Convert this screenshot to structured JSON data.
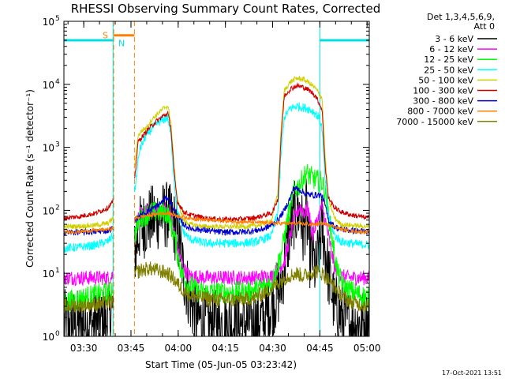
{
  "chart_data": {
    "type": "line",
    "title": "RHESSI Observing Summary Count Rates, Corrected",
    "xlabel": "Start Time (05-Jun-05 03:23:42)",
    "ylabel": "Corrected Count Rate (s⁻¹ detector⁻¹)",
    "yscale": "log",
    "ylim": [
      1,
      100000
    ],
    "xlim_minutes": [
      0,
      97
    ],
    "x_unit": "minutes after 03:23:42",
    "x_ticks": [
      {
        "label": "03:30",
        "t": 6.3
      },
      {
        "label": "03:45",
        "t": 21.3
      },
      {
        "label": "04:00",
        "t": 36.3
      },
      {
        "label": "04:15",
        "t": 51.3
      },
      {
        "label": "04:30",
        "t": 66.3
      },
      {
        "label": "04:45",
        "t": 81.3
      },
      {
        "label": "05:00",
        "t": 96.3
      }
    ],
    "y_ticks": [
      {
        "label": "10",
        "exp": "0",
        "v": 1
      },
      {
        "label": "10",
        "exp": "1",
        "v": 10
      },
      {
        "label": "10",
        "exp": "2",
        "v": 100
      },
      {
        "label": "10",
        "exp": "3",
        "v": 1000
      },
      {
        "label": "10",
        "exp": "4",
        "v": 10000
      },
      {
        "label": "10",
        "exp": "5",
        "v": 100000
      }
    ],
    "legend_header": [
      "Det 1,3,4,5,6,9,",
      "Att 0"
    ],
    "legend_position": "right",
    "footer": "17-Oct-2021 13:51",
    "flags": {
      "s_label": "S",
      "n_label": "N",
      "s_color": "#ff8000",
      "n_color": "#00e0e0",
      "night_level": 50000,
      "night_intervals": [
        [
          0,
          15.6
        ],
        [
          81.3,
          97
        ]
      ],
      "saa_interval": [
        15.8,
        22.4
      ],
      "saa_level": 60000
    },
    "series": [
      {
        "name": "3 - 6 keV",
        "color": "#000000",
        "points": [
          [
            0,
            1.6
          ],
          [
            5,
            1.6
          ],
          [
            10,
            1.6
          ],
          [
            14,
            1.8
          ],
          [
            15.6,
            3
          ],
          [
            22.5,
            20
          ],
          [
            24,
            50
          ],
          [
            27,
            70
          ],
          [
            30,
            80
          ],
          [
            33,
            85
          ],
          [
            35,
            60
          ],
          [
            37,
            25
          ],
          [
            38,
            10
          ],
          [
            40,
            4
          ],
          [
            42,
            2
          ],
          [
            46,
            1.6
          ],
          [
            55,
            1.6
          ],
          [
            60,
            1.6
          ],
          [
            64,
            2
          ],
          [
            69,
            6
          ],
          [
            71,
            30
          ],
          [
            73,
            80
          ],
          [
            75,
            100
          ],
          [
            76,
            40
          ],
          [
            77,
            100
          ],
          [
            78,
            20
          ],
          [
            79,
            20
          ],
          [
            80,
            10
          ],
          [
            82,
            60
          ],
          [
            84,
            10
          ],
          [
            86,
            3
          ],
          [
            88,
            2
          ],
          [
            91,
            1.6
          ],
          [
            97,
            1.6
          ]
        ]
      },
      {
        "name": "6 - 12 keV",
        "color": "#ff00ff",
        "points": [
          [
            0,
            8.5
          ],
          [
            10,
            8.5
          ],
          [
            15,
            8.5
          ],
          [
            15.6,
            10
          ],
          [
            22.5,
            50
          ],
          [
            24,
            85
          ],
          [
            26,
            95
          ],
          [
            29,
            100
          ],
          [
            32,
            110
          ],
          [
            34,
            85
          ],
          [
            36,
            25
          ],
          [
            38,
            12
          ],
          [
            40,
            9
          ],
          [
            45,
            8.5
          ],
          [
            60,
            8.5
          ],
          [
            66,
            9
          ],
          [
            70,
            15
          ],
          [
            73,
            70
          ],
          [
            75,
            115
          ],
          [
            76.5,
            90
          ],
          [
            77.5,
            110
          ],
          [
            79,
            40
          ],
          [
            82,
            120
          ],
          [
            84,
            40
          ],
          [
            86,
            12
          ],
          [
            88,
            9
          ],
          [
            91,
            8.5
          ],
          [
            97,
            8.5
          ]
        ]
      },
      {
        "name": "12 - 25 keV",
        "color": "#00ff00",
        "points": [
          [
            0,
            3.5
          ],
          [
            10,
            4.5
          ],
          [
            15,
            5
          ],
          [
            15.6,
            7
          ],
          [
            22.5,
            40
          ],
          [
            24,
            75
          ],
          [
            27,
            90
          ],
          [
            30,
            95
          ],
          [
            33,
            90
          ],
          [
            35,
            40
          ],
          [
            37,
            12
          ],
          [
            39,
            7
          ],
          [
            43,
            5
          ],
          [
            50,
            5
          ],
          [
            58,
            5
          ],
          [
            63,
            6
          ],
          [
            66,
            7
          ],
          [
            69,
            20
          ],
          [
            71,
            70
          ],
          [
            73,
            200
          ],
          [
            75,
            260
          ],
          [
            77,
            400
          ],
          [
            78,
            350
          ],
          [
            80,
            300
          ],
          [
            82,
            280
          ],
          [
            83,
            200
          ],
          [
            85,
            40
          ],
          [
            87,
            10
          ],
          [
            89,
            6
          ],
          [
            92,
            5
          ],
          [
            97,
            4
          ]
        ]
      },
      {
        "name": "25 - 50 keV",
        "color": "#00ffff",
        "points": [
          [
            0,
            25
          ],
          [
            5,
            26
          ],
          [
            10,
            28
          ],
          [
            14,
            32
          ],
          [
            15.6,
            40
          ],
          [
            22.5,
            200
          ],
          [
            24,
            900
          ],
          [
            26,
            1500
          ],
          [
            28,
            2000
          ],
          [
            30,
            2500
          ],
          [
            32,
            2800
          ],
          [
            33,
            3000
          ],
          [
            34,
            1500
          ],
          [
            35,
            300
          ],
          [
            36,
            100
          ],
          [
            38,
            45
          ],
          [
            40,
            35
          ],
          [
            45,
            30
          ],
          [
            50,
            30
          ],
          [
            55,
            30
          ],
          [
            60,
            31
          ],
          [
            63,
            34
          ],
          [
            66,
            40
          ],
          [
            68,
            100
          ],
          [
            69,
            800
          ],
          [
            70,
            3000
          ],
          [
            72,
            4200
          ],
          [
            74,
            4500
          ],
          [
            77,
            4200
          ],
          [
            79,
            3800
          ],
          [
            81,
            3000
          ],
          [
            82,
            2000
          ],
          [
            83,
            300
          ],
          [
            84,
            80
          ],
          [
            86,
            40
          ],
          [
            88,
            32
          ],
          [
            91,
            30
          ],
          [
            97,
            28
          ]
        ]
      },
      {
        "name": "50 - 100 keV",
        "color": "#d0d000",
        "points": [
          [
            0,
            55
          ],
          [
            5,
            56
          ],
          [
            10,
            58
          ],
          [
            14,
            62
          ],
          [
            15.6,
            75
          ],
          [
            22.5,
            500
          ],
          [
            23.5,
            1500
          ],
          [
            25,
            1900
          ],
          [
            26,
            2000
          ],
          [
            28,
            2800
          ],
          [
            30,
            3500
          ],
          [
            32,
            4300
          ],
          [
            33,
            4500
          ],
          [
            34,
            2500
          ],
          [
            35,
            500
          ],
          [
            36,
            150
          ],
          [
            38,
            70
          ],
          [
            40,
            60
          ],
          [
            45,
            55
          ],
          [
            50,
            55
          ],
          [
            55,
            55
          ],
          [
            60,
            56
          ],
          [
            63,
            60
          ],
          [
            66,
            70
          ],
          [
            68,
            200
          ],
          [
            69,
            2000
          ],
          [
            70,
            8000
          ],
          [
            72,
            11000
          ],
          [
            74,
            12500
          ],
          [
            76,
            12000
          ],
          [
            78,
            10500
          ],
          [
            80,
            8500
          ],
          [
            82,
            6000
          ],
          [
            83,
            700
          ],
          [
            84,
            150
          ],
          [
            86,
            75
          ],
          [
            88,
            60
          ],
          [
            91,
            58
          ],
          [
            97,
            55
          ]
        ]
      },
      {
        "name": "100 - 300 keV",
        "color": "#cc0000",
        "points": [
          [
            0,
            75
          ],
          [
            5,
            80
          ],
          [
            10,
            90
          ],
          [
            14,
            110
          ],
          [
            15.6,
            140
          ],
          [
            22.5,
            300
          ],
          [
            23.5,
            1200
          ],
          [
            25,
            1500
          ],
          [
            27,
            2000
          ],
          [
            29,
            2500
          ],
          [
            31,
            3000
          ],
          [
            33,
            3500
          ],
          [
            34,
            2000
          ],
          [
            35,
            400
          ],
          [
            36,
            140
          ],
          [
            38,
            95
          ],
          [
            40,
            85
          ],
          [
            45,
            75
          ],
          [
            50,
            72
          ],
          [
            55,
            72
          ],
          [
            60,
            75
          ],
          [
            63,
            82
          ],
          [
            66,
            90
          ],
          [
            68,
            150
          ],
          [
            69,
            1500
          ],
          [
            70,
            6500
          ],
          [
            72,
            8500
          ],
          [
            74,
            9500
          ],
          [
            76,
            9000
          ],
          [
            78,
            8000
          ],
          [
            80,
            6500
          ],
          [
            82,
            4000
          ],
          [
            83,
            500
          ],
          [
            84,
            160
          ],
          [
            86,
            110
          ],
          [
            88,
            95
          ],
          [
            91,
            85
          ],
          [
            97,
            75
          ]
        ]
      },
      {
        "name": "300 - 800 keV",
        "color": "#0000cc",
        "points": [
          [
            0,
            45
          ],
          [
            5,
            45
          ],
          [
            10,
            46
          ],
          [
            14,
            48
          ],
          [
            15.6,
            52
          ],
          [
            22.5,
            70
          ],
          [
            24,
            80
          ],
          [
            27,
            100
          ],
          [
            30,
            120
          ],
          [
            32,
            150
          ],
          [
            33,
            160
          ],
          [
            34,
            130
          ],
          [
            36,
            80
          ],
          [
            38,
            60
          ],
          [
            40,
            52
          ],
          [
            45,
            48
          ],
          [
            50,
            45
          ],
          [
            55,
            45
          ],
          [
            60,
            47
          ],
          [
            63,
            50
          ],
          [
            66,
            58
          ],
          [
            68,
            70
          ],
          [
            70,
            100
          ],
          [
            72,
            160
          ],
          [
            73,
            230
          ],
          [
            75,
            210
          ],
          [
            77,
            180
          ],
          [
            79,
            175
          ],
          [
            81,
            175
          ],
          [
            82,
            170
          ],
          [
            83,
            120
          ],
          [
            84,
            70
          ],
          [
            86,
            55
          ],
          [
            88,
            50
          ],
          [
            91,
            48
          ],
          [
            97,
            45
          ]
        ]
      },
      {
        "name": "800 - 7000 keV",
        "color": "#ff8000",
        "points": [
          [
            0,
            45
          ],
          [
            5,
            46
          ],
          [
            10,
            48
          ],
          [
            14,
            50
          ],
          [
            15.6,
            52
          ],
          [
            22.5,
            75
          ],
          [
            25,
            80
          ],
          [
            28,
            85
          ],
          [
            31,
            90
          ],
          [
            33,
            90
          ],
          [
            35,
            85
          ],
          [
            37,
            80
          ],
          [
            40,
            75
          ],
          [
            45,
            70
          ],
          [
            50,
            68
          ],
          [
            55,
            66
          ],
          [
            60,
            65
          ],
          [
            65,
            63
          ],
          [
            70,
            62
          ],
          [
            75,
            62
          ],
          [
            78,
            60
          ],
          [
            80,
            60
          ],
          [
            82,
            62
          ],
          [
            84,
            60
          ],
          [
            86,
            55
          ],
          [
            88,
            50
          ],
          [
            91,
            47
          ],
          [
            97,
            45
          ]
        ]
      },
      {
        "name": "7000 - 15000 keV",
        "color": "#808000",
        "points": [
          [
            0,
            3
          ],
          [
            10,
            3.2
          ],
          [
            15,
            3.5
          ],
          [
            15.6,
            3.8
          ],
          [
            22.5,
            10
          ],
          [
            24,
            11
          ],
          [
            27,
            12
          ],
          [
            30,
            11
          ],
          [
            33,
            10
          ],
          [
            35,
            8
          ],
          [
            37,
            6
          ],
          [
            40,
            4.5
          ],
          [
            45,
            4
          ],
          [
            50,
            3.8
          ],
          [
            55,
            3.8
          ],
          [
            60,
            4
          ],
          [
            64,
            5
          ],
          [
            68,
            7
          ],
          [
            71,
            9
          ],
          [
            74,
            10
          ],
          [
            76,
            9
          ],
          [
            78,
            10
          ],
          [
            80,
            11
          ],
          [
            82,
            10
          ],
          [
            84,
            8
          ],
          [
            86,
            6
          ],
          [
            88,
            4.5
          ],
          [
            91,
            3.5
          ],
          [
            97,
            3
          ]
        ]
      }
    ]
  }
}
